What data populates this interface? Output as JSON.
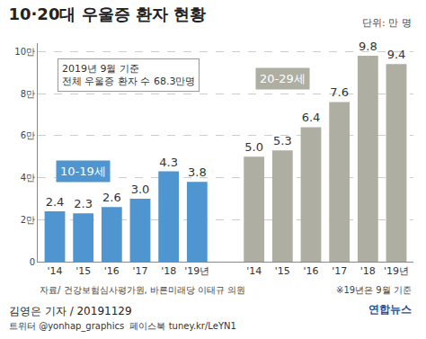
{
  "chart_data": {
    "type": "bar",
    "title": "10·20대 우울증 환자 현황",
    "unit_note": "단위: 만 명",
    "note": [
      "2019년 9월 기준",
      "전체 우울증 환자 수 68.3만명"
    ],
    "categories": [
      "'14",
      "'15",
      "'16",
      "'17",
      "'18",
      "'19년",
      null,
      "'14",
      "'15",
      "'16",
      "'17",
      "'18",
      "'19년"
    ],
    "series": [
      {
        "name": "10-19세",
        "color": "#4f95cf",
        "values": [
          2.4,
          2.3,
          2.6,
          3.0,
          4.3,
          3.8,
          null,
          null,
          null,
          null,
          null,
          null,
          null
        ],
        "value_labels": [
          "2.4",
          "2.3",
          "2.6",
          "3.0",
          "4.3",
          "3.8",
          null,
          null,
          null,
          null,
          null,
          null,
          null
        ]
      },
      {
        "name": "20-29세",
        "color": "#aeaea2",
        "values": [
          null,
          null,
          null,
          null,
          null,
          null,
          null,
          5.0,
          5.3,
          6.4,
          7.6,
          9.8,
          9.4
        ],
        "value_labels": [
          null,
          null,
          null,
          null,
          null,
          null,
          null,
          "5.0",
          "5.3",
          "6.4",
          "7.6",
          "9.8",
          "9.4"
        ]
      }
    ],
    "ylim": [
      0,
      10.4
    ],
    "yticks": [
      0,
      {
        "value": 2,
        "label": "2만"
      },
      {
        "value": 4,
        "label": "4만"
      },
      {
        "value": 6,
        "label": "6만"
      },
      {
        "value": 8,
        "label": "8만"
      },
      {
        "value": 10,
        "label": "10만"
      }
    ],
    "grid": true,
    "data_labels": true,
    "source": "자료/ 건강보험심사평가원, 바른미래당 이태규 의원",
    "footnote": "※19년은 9월 기준",
    "credit": "김영은 기자 / 20191129",
    "social": "트위터 @yonhap_graphics  페이스북 tuney.kr/LeYN1",
    "logo": "연합뉴스"
  }
}
